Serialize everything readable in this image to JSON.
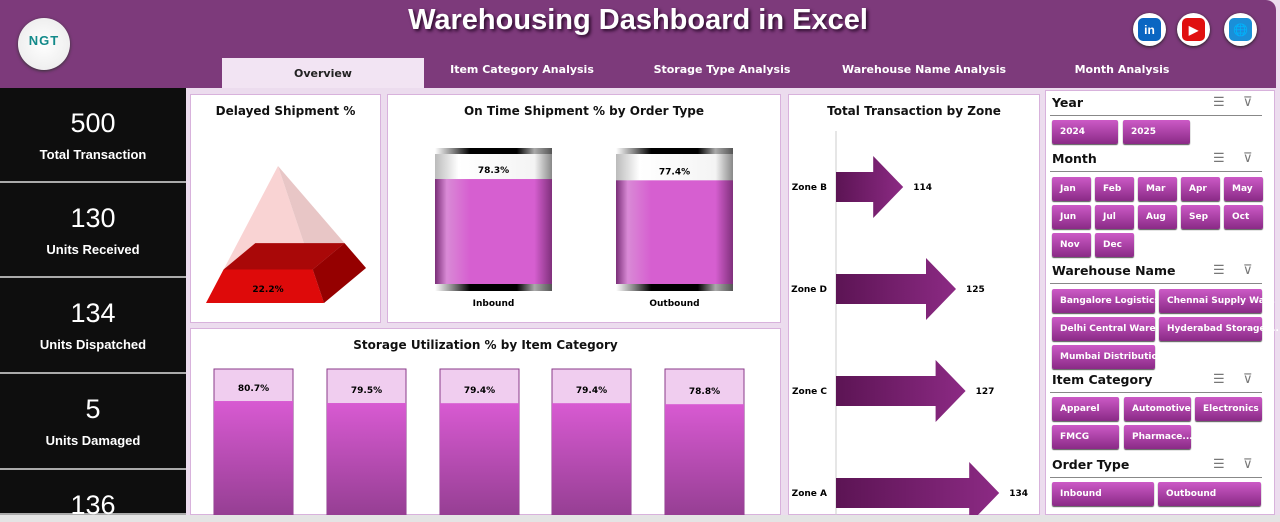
{
  "header": {
    "title": "Warehousing Dashboard in Excel",
    "logo_text": "NGT",
    "social": [
      {
        "name": "linkedin-icon",
        "label": "in",
        "color": "#0a66c2"
      },
      {
        "name": "youtube-icon",
        "label": "▶",
        "color": "#e01010"
      },
      {
        "name": "globe-icon",
        "label": "🌐",
        "color": "#1a8fd8"
      }
    ]
  },
  "tabs": [
    {
      "label": "Overview",
      "active": true
    },
    {
      "label": "Item Category Analysis"
    },
    {
      "label": "Storage Type Analysis"
    },
    {
      "label": "Warehouse Name Analysis"
    },
    {
      "label": "Month Analysis"
    }
  ],
  "kpis": [
    {
      "value": "500",
      "label": "Total Transaction"
    },
    {
      "value": "130",
      "label": "Units Received"
    },
    {
      "value": "134",
      "label": "Units Dispatched"
    },
    {
      "value": "5",
      "label": "Units Damaged"
    },
    {
      "value": "136",
      "label": ""
    }
  ],
  "chart_data": [
    {
      "type": "pyramid",
      "title": "Delayed Shipment %",
      "values": [
        22.2
      ],
      "labels": [
        "22.2%"
      ],
      "colors": [
        "#dd0a0a",
        "#f8d0d0"
      ]
    },
    {
      "type": "bar",
      "title": "On Time Shipment % by Order Type",
      "categories": [
        "Inbound",
        "Outbound"
      ],
      "values": [
        78.3,
        77.4
      ],
      "labels": [
        "78.3%",
        "77.4%"
      ],
      "ylim": [
        0,
        100
      ],
      "color": "#d65fd0"
    },
    {
      "type": "bar",
      "title": "Storage Utilization % by Item Category",
      "values": [
        80.7,
        79.5,
        79.4,
        79.4,
        78.8
      ],
      "labels": [
        "80.7%",
        "79.5%",
        "79.4%",
        "79.4%",
        "78.8%"
      ],
      "ylim": [
        0,
        100
      ],
      "color": "#c950c4"
    },
    {
      "type": "bar",
      "orientation": "horizontal",
      "title": "Total Transaction by Zone",
      "categories": [
        "Zone B",
        "Zone D",
        "Zone C",
        "Zone A"
      ],
      "values": [
        114,
        125,
        127,
        134
      ],
      "xlim": [
        100,
        140
      ],
      "color": "#6e1b68"
    }
  ],
  "slicers": [
    {
      "title": "Year",
      "items": [
        "2024",
        "2025"
      ]
    },
    {
      "title": "Month",
      "items": [
        "Jan",
        "Feb",
        "Mar",
        "Apr",
        "May",
        "Jun",
        "Jul",
        "Aug",
        "Sep",
        "Oct",
        "Nov",
        "Dec"
      ]
    },
    {
      "title": "Warehouse Name",
      "items": [
        "Bangalore Logistics ...",
        "Chennai Supply Wa...",
        "Delhi Central Ware...",
        "Hyderabad Storage ...",
        "Mumbai Distributio..."
      ]
    },
    {
      "title": "Item Category",
      "items": [
        "Apparel",
        "Automotive",
        "Electronics",
        "FMCG",
        "Pharmace..."
      ]
    },
    {
      "title": "Order Type",
      "items": [
        "Inbound",
        "Outbound"
      ]
    }
  ]
}
